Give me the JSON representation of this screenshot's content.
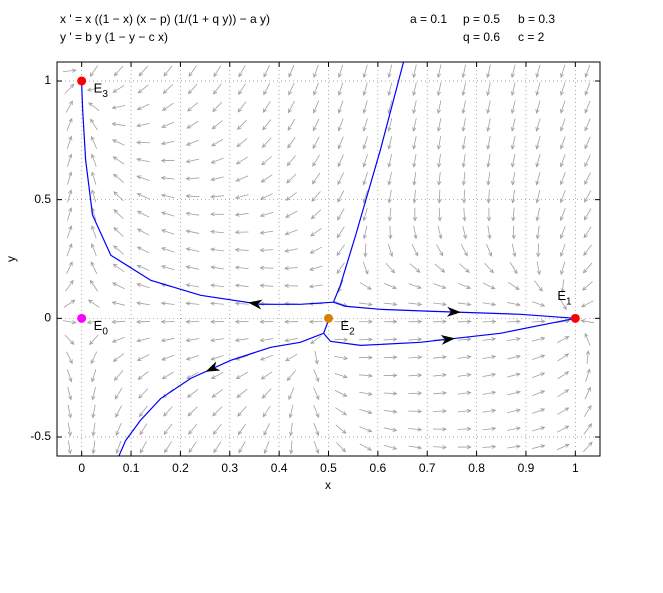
{
  "chart_data": {
    "type": "phase-plane",
    "equations": [
      "x ' = x ((1 − x) (x − p) (1/(1 + q y)) − a y)",
      "y ' = b y (1 − y − c x)"
    ],
    "parameters": [
      {
        "label": "a = 0.1",
        "value": 0.1
      },
      {
        "label": "p = 0.5",
        "value": 0.5
      },
      {
        "label": "b = 0.3",
        "value": 0.3
      },
      {
        "label": "q = 0.6",
        "value": 0.6
      },
      {
        "label": "c = 2",
        "value": 2
      }
    ],
    "xlabel": "x",
    "ylabel": "y",
    "xlim": [
      -0.05,
      1.05
    ],
    "ylim": [
      -0.58,
      1.08
    ],
    "xticks": [
      0,
      0.1,
      0.2,
      0.3,
      0.4,
      0.5,
      0.6,
      0.7,
      0.8,
      0.9,
      1
    ],
    "yticks": [
      -0.5,
      0,
      0.5,
      1
    ],
    "grid": true,
    "field_color": "#a0a0a0",
    "trajectory_color": "#0000ff",
    "trajectories": [
      {
        "x": [
          0.652,
          0.605,
          0.555,
          0.524,
          0.51,
          0.443,
          0.362,
          0.241,
          0.14,
          0.059,
          0.022,
          0.008,
          0.002,
          0
        ],
        "y": [
          1.08,
          0.709,
          0.35,
          0.139,
          0.068,
          0.059,
          0.059,
          0.097,
          0.16,
          0.266,
          0.435,
          0.667,
          0.878,
          0.983
        ]
      },
      {
        "x": [
          0.51,
          0.534,
          0.605,
          0.706,
          0.889,
          1.0
        ],
        "y": [
          0.068,
          0.051,
          0.038,
          0.03,
          0.017,
          0
        ]
      },
      {
        "x": [
          0.5,
          0.49,
          0.443,
          0.383,
          0.302,
          0.221,
          0.16,
          0.119,
          0.089,
          0.075
        ],
        "y": [
          -0.008,
          -0.063,
          -0.101,
          -0.122,
          -0.177,
          -0.253,
          -0.338,
          -0.43,
          -0.515,
          -0.582
        ]
      },
      {
        "x": [
          0.49,
          0.504,
          0.565,
          0.686,
          0.848,
          1.0
        ],
        "y": [
          -0.063,
          -0.097,
          -0.114,
          -0.101,
          -0.063,
          0
        ]
      }
    ],
    "equilibria": [
      {
        "x": 0,
        "y": 0,
        "label": "E",
        "sub": "0",
        "color": "#ff00ff"
      },
      {
        "x": 1,
        "y": 0,
        "label": "E",
        "sub": "1",
        "color": "#ff0000"
      },
      {
        "x": 0.5,
        "y": 0,
        "label": "E",
        "sub": "2",
        "color": "#d98000"
      },
      {
        "x": 0,
        "y": 1,
        "label": "E",
        "sub": "3",
        "color": "#ff0000"
      }
    ]
  }
}
